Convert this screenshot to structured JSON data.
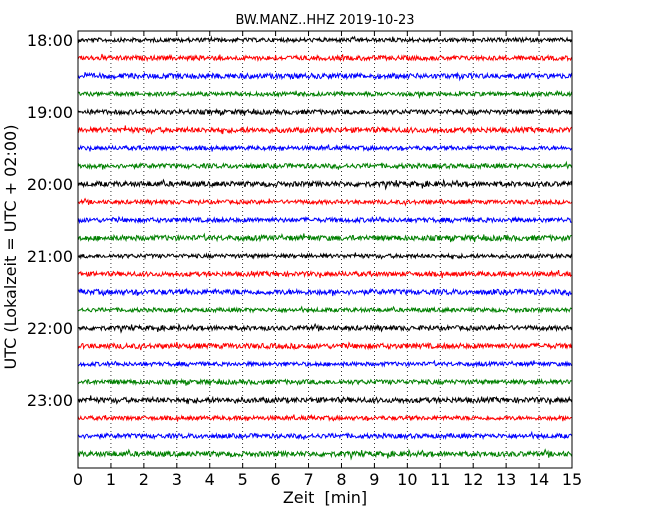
{
  "chart_data": {
    "type": "line",
    "subtype": "seismogram-dayplot",
    "title": "BW.MANZ..HHZ 2019-10-23",
    "xlabel": "Zeit  [min]",
    "ylabel": "UTC (Lokalzeit = UTC + 02:00)",
    "xlim": [
      0,
      15
    ],
    "x_ticks": [
      "0",
      "1",
      "2",
      "3",
      "4",
      "5",
      "6",
      "7",
      "8",
      "9",
      "10",
      "11",
      "12",
      "13",
      "14",
      "15"
    ],
    "y_ticks": [
      "18:00",
      "19:00",
      "20:00",
      "21:00",
      "22:00",
      "23:00"
    ],
    "grid": {
      "x": "dotted-vertical",
      "y": "none"
    },
    "trace_colors": [
      "#000000",
      "#ff0000",
      "#0000ff",
      "#008000"
    ],
    "trace_starts": [
      "18:00",
      "18:15",
      "18:30",
      "18:45",
      "19:00",
      "19:15",
      "19:30",
      "19:45",
      "20:00",
      "20:15",
      "20:30",
      "20:45",
      "21:00",
      "21:15",
      "21:30",
      "21:45",
      "22:00",
      "22:15",
      "22:30",
      "22:45",
      "23:00",
      "23:15",
      "23:30",
      "23:45"
    ]
  }
}
